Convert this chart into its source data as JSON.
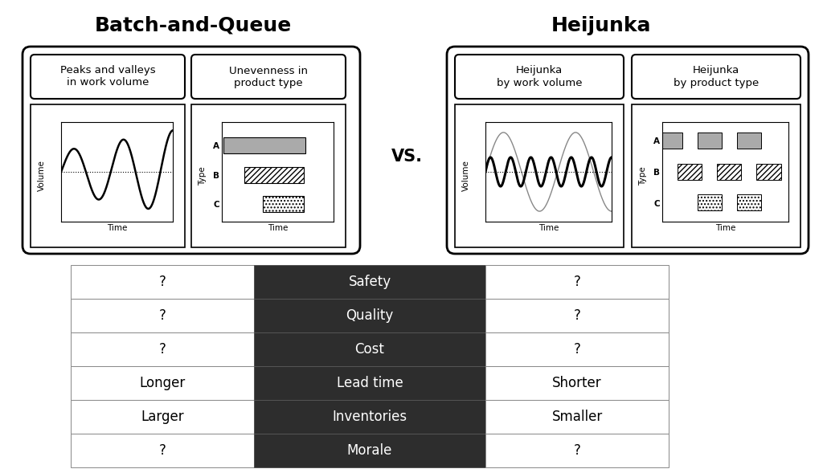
{
  "title_left": "Batch-and-Queue",
  "title_right": "Heijunka",
  "vs_text": "VS.",
  "box1_label": "Peaks and valleys\nin work volume",
  "box2_label": "Unevenness in\nproduct type",
  "box3_label": "Heijunka\nby work volume",
  "box4_label": "Heijunka\nby product type",
  "table_col_middle": [
    "Safety",
    "Quality",
    "Cost",
    "Lead time",
    "Inventories",
    "Morale"
  ],
  "table_col_left": [
    "?",
    "?",
    "?",
    "Longer",
    "Larger",
    "?"
  ],
  "table_col_right": [
    "?",
    "?",
    "?",
    "Shorter",
    "Smaller",
    "?"
  ],
  "bg_color": "#ffffff",
  "table_dark_bg": "#2d2d2d",
  "table_light_bg": "#ffffff",
  "table_text_dark": "#ffffff",
  "table_text_light": "#000000",
  "title_fontsize": 18,
  "table_fontsize": 12,
  "fig_w": 1024,
  "fig_h": 589
}
